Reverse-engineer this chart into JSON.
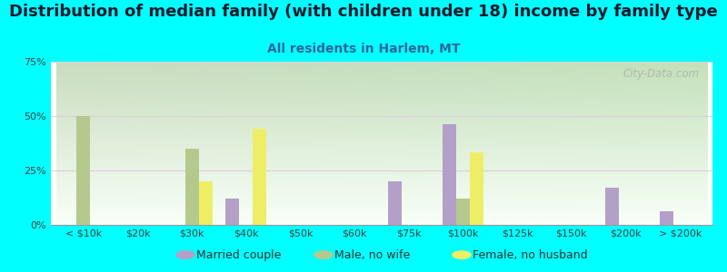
{
  "title": "Distribution of median family (with children under 18) income by family type",
  "subtitle": "All residents in Harlem, MT",
  "categories": [
    "< $10k",
    "$20k",
    "$30k",
    "$40k",
    "$50k",
    "$60k",
    "$75k",
    "$100k",
    "$125k",
    "$150k",
    "$200k",
    "> $200k"
  ],
  "married_couple": [
    0,
    0,
    0,
    12,
    0,
    0,
    20,
    46,
    0,
    0,
    17,
    6
  ],
  "male_no_wife": [
    50,
    0,
    35,
    0,
    0,
    0,
    0,
    12,
    0,
    0,
    0,
    0
  ],
  "female_no_husband": [
    0,
    0,
    20,
    44,
    0,
    0,
    0,
    33,
    0,
    0,
    0,
    0
  ],
  "married_color": "#b3a0c8",
  "male_color": "#b5c98e",
  "female_color": "#eeee66",
  "bg_color": "#00ffff",
  "ylim": [
    0,
    75
  ],
  "yticks": [
    0,
    25,
    50,
    75
  ],
  "ytick_labels": [
    "0%",
    "25%",
    "50%",
    "75%"
  ],
  "bar_width": 0.25,
  "title_fontsize": 13,
  "subtitle_fontsize": 10,
  "title_color": "#1a1a2e",
  "subtitle_color": "#336699",
  "watermark": "City-Data.com",
  "tick_color": "#444444",
  "tick_fontsize": 8,
  "legend_labels": [
    "Married couple",
    "Male, no wife",
    "Female, no husband"
  ],
  "legend_fontsize": 9,
  "grid_color": "#ddccdd",
  "plot_bg_left": "#c8ddb8",
  "plot_bg_right": "#f0f8f0"
}
